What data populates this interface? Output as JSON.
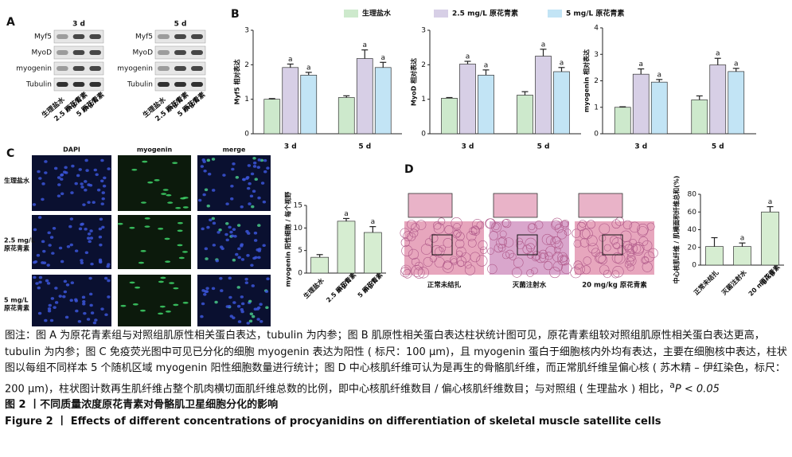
{
  "panel_labels": [
    "A",
    "B",
    "C",
    "D"
  ],
  "panel_a": {
    "blots": [
      {
        "title": "3 d",
        "rows": [
          "Myf5",
          "MyoD",
          "myogenin",
          "Tubulin"
        ]
      },
      {
        "title": "5 d",
        "rows": [
          "Myf5",
          "MyoD",
          "myogenin",
          "Tubulin"
        ]
      }
    ],
    "lanes": [
      [
        "生理盐水"
      ],
      [
        "2.5 mg/L",
        "原花青素"
      ],
      [
        "5 mg/L",
        "原花青素"
      ]
    ]
  },
  "panel_c": {
    "columns": [
      "DAPI",
      "myogenin",
      "merge"
    ],
    "rows": [
      [
        "生理盐水"
      ],
      [
        "2.5 mg/L",
        "原花青素"
      ],
      [
        "5 mg/L",
        "原花青素"
      ]
    ]
  },
  "panel_d": {
    "images": [
      "正常未结扎",
      "灭菌注射水",
      "20 mg/kg 原花青素"
    ]
  },
  "chart_data": [
    {
      "type": "bar",
      "ylabel": "Myf5 相对表达",
      "ylim": [
        0,
        3
      ],
      "yticks": [
        0,
        1,
        2,
        3
      ],
      "categories": [
        "3 d",
        "5 d"
      ],
      "series": [
        {
          "name": "生理盐水",
          "color": "#cde9cc",
          "values": [
            1.0,
            1.05
          ],
          "errors": [
            0.02,
            0.05
          ]
        },
        {
          "name": "2.5 mg/L 原花青素",
          "color": "#d7cfe6",
          "values": [
            1.92,
            2.18
          ],
          "errors": [
            0.1,
            0.25
          ],
          "labels": [
            "a",
            "a"
          ]
        },
        {
          "name": "5 mg/L 原花青素",
          "color": "#c2e4f5",
          "values": [
            1.7,
            1.92
          ],
          "errors": [
            0.08,
            0.15
          ],
          "labels": [
            "a",
            "a"
          ]
        }
      ]
    },
    {
      "type": "bar",
      "ylabel": "MyoD 相对表达",
      "ylim": [
        0,
        3
      ],
      "yticks": [
        0,
        1,
        2,
        3
      ],
      "categories": [
        "3 d",
        "5 d"
      ],
      "series": [
        {
          "color": "#cde9cc",
          "values": [
            1.03,
            1.12
          ],
          "errors": [
            0.02,
            0.1
          ]
        },
        {
          "color": "#d7cfe6",
          "values": [
            2.02,
            2.25
          ],
          "errors": [
            0.08,
            0.2
          ],
          "labels": [
            "a",
            "a"
          ]
        },
        {
          "color": "#c2e4f5",
          "values": [
            1.7,
            1.8
          ],
          "errors": [
            0.15,
            0.12
          ],
          "labels": [
            "a",
            "a"
          ]
        }
      ]
    },
    {
      "type": "bar",
      "ylabel": "myogenin 相对表达",
      "ylim": [
        0,
        4
      ],
      "yticks": [
        0,
        1,
        2,
        3,
        4
      ],
      "categories": [
        "3 d",
        "5 d"
      ],
      "series": [
        {
          "color": "#cde9cc",
          "values": [
            1.0,
            1.28
          ],
          "errors": [
            0.02,
            0.15
          ]
        },
        {
          "color": "#d7cfe6",
          "values": [
            2.25,
            2.6
          ],
          "errors": [
            0.2,
            0.25
          ],
          "labels": [
            "a",
            "a"
          ]
        },
        {
          "color": "#c2e4f5",
          "values": [
            1.95,
            2.35
          ],
          "errors": [
            0.1,
            0.12
          ],
          "labels": [
            "a",
            "a"
          ]
        }
      ]
    },
    {
      "type": "bar",
      "ylabel": "myogenin 阳性细胞 / 每个视野",
      "ylim": [
        0,
        15
      ],
      "yticks": [
        0,
        5,
        10,
        15
      ],
      "categories": [
        [
          "生理盐水"
        ],
        [
          "2.5 mg/L",
          "原花青素"
        ],
        [
          "5 mg/L",
          "原花青素"
        ]
      ],
      "series": [
        {
          "color": "#d6edd1",
          "values": [
            3.5,
            11.5,
            9
          ],
          "errors": [
            0.6,
            0.6,
            1.3
          ],
          "labels": [
            null,
            "a",
            "a"
          ]
        }
      ]
    },
    {
      "type": "bar",
      "ylabel": "中心核肌纤维 / 肌横面积纤维总和(%)",
      "ylim": [
        0,
        80
      ],
      "yticks": [
        0,
        20,
        40,
        60,
        80
      ],
      "categories": [
        [
          "正常未结扎"
        ],
        [
          "灭菌注射水"
        ],
        [
          "20 mg/kg",
          "原花青素"
        ]
      ],
      "series": [
        {
          "color": "#d6edd1",
          "values": [
            21,
            21,
            60
          ],
          "errors": [
            10,
            4,
            6
          ],
          "labels": [
            null,
            "a",
            "a"
          ]
        }
      ]
    }
  ],
  "caption": {
    "text": "图注：图 A 为原花青素组与对照组肌原性相关蛋白表达，tubulin 为内参；图 B 肌原性相关蛋白表达柱状统计图可见，原花青素组较对照组肌原性相关蛋白表达更高，tubulin 为内参；图 C 免疫荧光图中可见已分化的细胞 myogenin 表达为阳性 ( 标尺：100 μm)，且 myogenin 蛋白于细胞核内外均有表达，主要在细胞核中表达，柱状图以每组不同样本 5 个随机区域 myogenin 阳性细胞数量进行统计；图 D 中心核肌纤维可认为是再生的骨骼肌纤维，而正常肌纤维呈偏心核 ( 苏木精 – 伊红染色，标尺：200 μm)，柱状图计数再生肌纤维占整个肌肉横切面肌纤维总数的比例，即中心核肌纤维数目 / 偏心核肌纤维数目；与对照组 ( 生理盐水 ) 相比，",
    "sup": "a",
    "tail": "P < 0.05",
    "title_cn": "图 2 丨不同质量浓度原花青素对骨骼肌卫星细胞分化的影响",
    "title_en": "Figure 2 丨 Effects of different concentrations of procyanidins on differentiation of skeletal muscle satellite cells"
  }
}
